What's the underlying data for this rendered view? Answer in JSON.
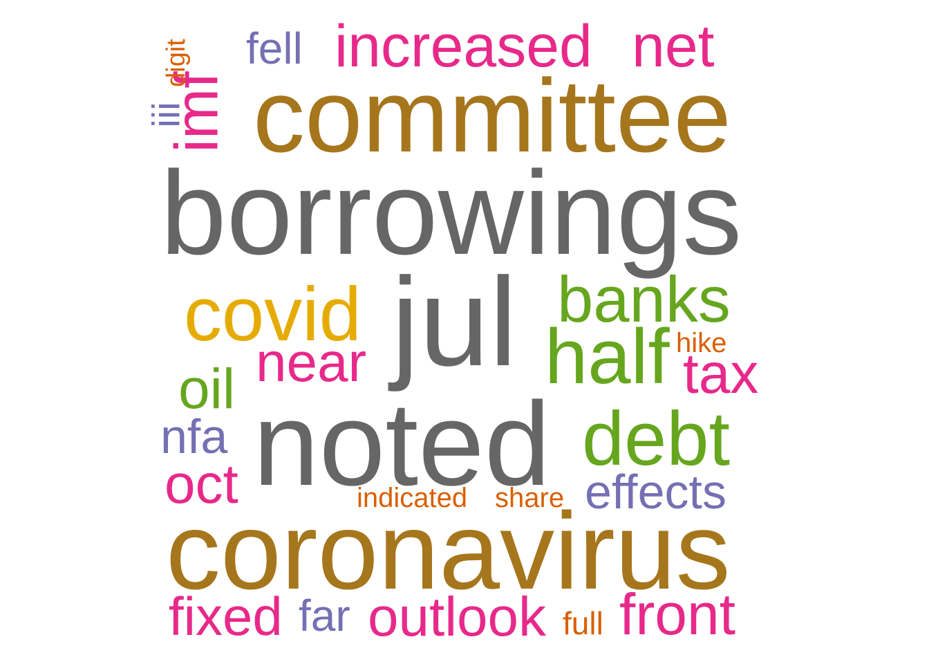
{
  "palette": {
    "gray": "#666666",
    "brown": "#A6761D",
    "magenta": "#E7298A",
    "green": "#66A61E",
    "purple": "#7570B3",
    "orange": "#D95F02",
    "gold": "#E6AB02"
  },
  "words": {
    "borrowings": {
      "text": "borrowings",
      "color": "#666666"
    },
    "committee": {
      "text": "committee",
      "color": "#A6761D"
    },
    "coronavirus": {
      "text": "coronavirus",
      "color": "#A6761D"
    },
    "noted": {
      "text": "noted",
      "color": "#666666"
    },
    "jul": {
      "text": "jul",
      "color": "#666666"
    },
    "covid": {
      "text": "covid",
      "color": "#E6AB02"
    },
    "banks": {
      "text": "banks",
      "color": "#66A61E"
    },
    "half": {
      "text": "half",
      "color": "#66A61E"
    },
    "debt": {
      "text": "debt",
      "color": "#66A61E"
    },
    "oil": {
      "text": "oil",
      "color": "#66A61E"
    },
    "increased": {
      "text": "increased",
      "color": "#E7298A"
    },
    "net": {
      "text": "net",
      "color": "#E7298A"
    },
    "imf": {
      "text": "imf",
      "color": "#E7298A"
    },
    "near": {
      "text": "near",
      "color": "#E7298A"
    },
    "tax": {
      "text": "tax",
      "color": "#E7298A"
    },
    "oct": {
      "text": "oct",
      "color": "#E7298A"
    },
    "fixed": {
      "text": "fixed",
      "color": "#E7298A"
    },
    "outlook": {
      "text": "outlook",
      "color": "#E7298A"
    },
    "front": {
      "text": "front",
      "color": "#E7298A"
    },
    "fell": {
      "text": "fell",
      "color": "#7570B3"
    },
    "iii": {
      "text": "iii",
      "color": "#7570B3"
    },
    "nfa": {
      "text": "nfa",
      "color": "#7570B3"
    },
    "effects": {
      "text": "effects",
      "color": "#7570B3"
    },
    "far": {
      "text": "far",
      "color": "#7570B3"
    },
    "digit": {
      "text": "digit",
      "color": "#D95F02"
    },
    "hike": {
      "text": "hike",
      "color": "#D95F02"
    },
    "indicated": {
      "text": "indicated",
      "color": "#D95F02"
    },
    "share": {
      "text": "share",
      "color": "#D95F02"
    },
    "full": {
      "text": "full",
      "color": "#D95F02"
    }
  }
}
